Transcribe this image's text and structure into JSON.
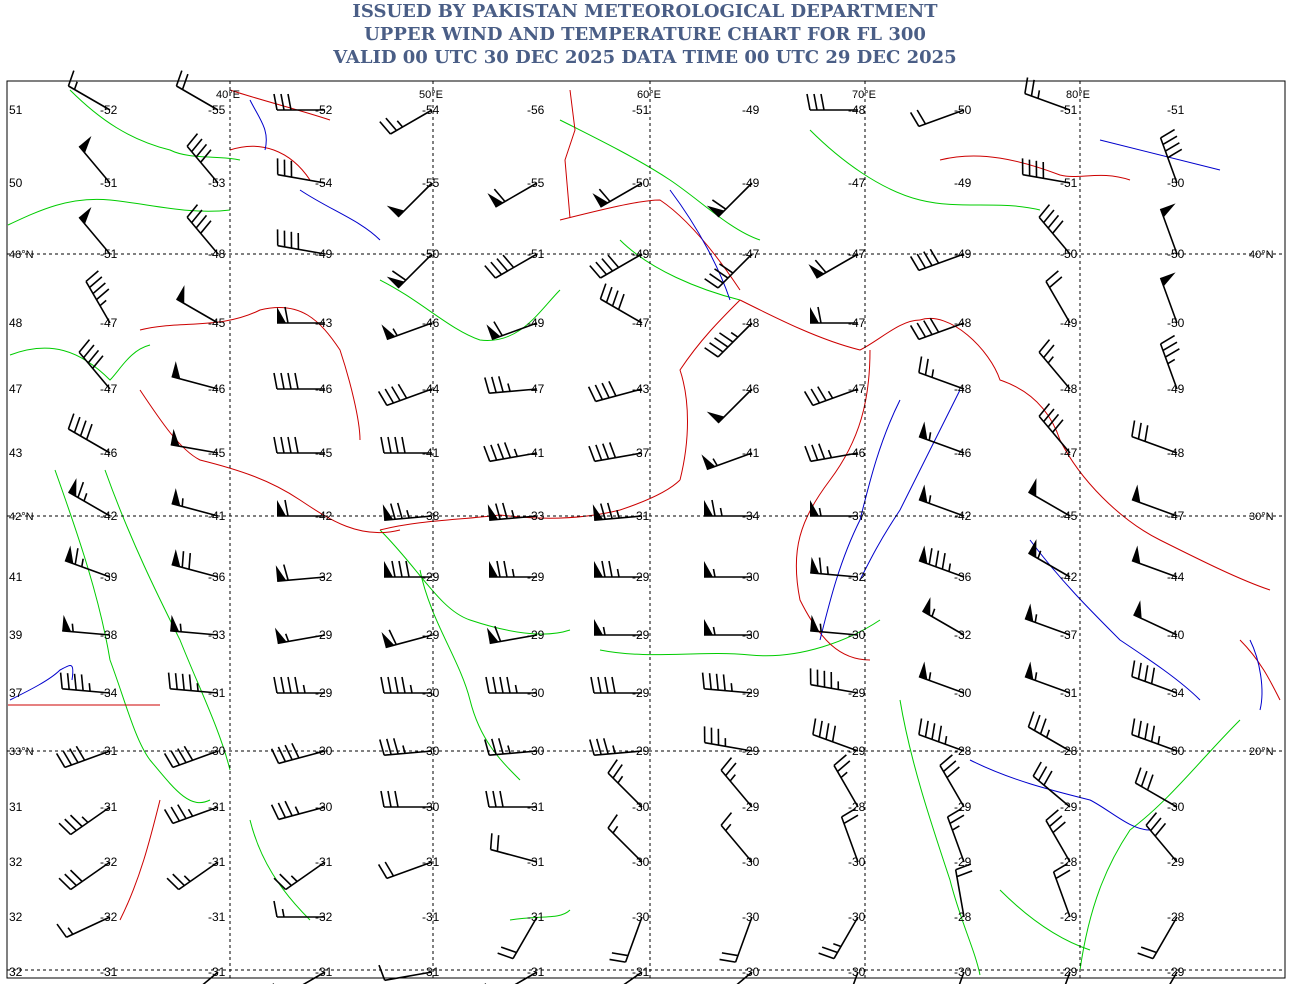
{
  "header": {
    "line1": "ISSUED BY PAKISTAN METEOROLOGICAL DEPARTMENT",
    "line2": "UPPER WIND AND TEMPERATURE CHART FOR FL 300",
    "line3": "VALID 00 UTC 30 DEC 2025 DATA TIME 00 UTC 29 DEC 2025"
  },
  "map": {
    "lon_labels": [
      {
        "lon": 40,
        "label": "40°E"
      },
      {
        "lon": 50,
        "label": "50°E"
      },
      {
        "lon": 60,
        "label": "60°E"
      },
      {
        "lon": 70,
        "label": "70°E"
      },
      {
        "lon": 80,
        "label": "80°E"
      }
    ],
    "lat_labels": [
      {
        "lat": 40,
        "label": "40°N"
      },
      {
        "lat": 30,
        "label": "30°N"
      },
      {
        "lat": 20,
        "label": "20°N"
      }
    ],
    "lat_left_labels": [
      {
        "lat": 40,
        "label": "48°N"
      },
      {
        "lat": 30,
        "label": "42°N"
      },
      {
        "lat": 20,
        "label": "33°N"
      }
    ],
    "left_values": [
      "51",
      "50",
      "",
      "48",
      "47",
      "43",
      "",
      "41",
      "39",
      "37",
      "",
      "31",
      "32",
      "32",
      "32"
    ],
    "colors": {
      "coast": "#00cc00",
      "border": "#cc0000",
      "river": "#0000cc",
      "grid": "#000000"
    },
    "rows": [
      {
        "temps": [
          "-52",
          "-55",
          "-52",
          "-54",
          "-56",
          "-51",
          "-49",
          "-48",
          "-50",
          "-51",
          "-51"
        ],
        "speeds": [
          15,
          20,
          30,
          25,
          0,
          0,
          0,
          30,
          20,
          25,
          0
        ],
        "dirs": [
          300,
          300,
          270,
          240,
          0,
          0,
          0,
          270,
          250,
          290,
          0
        ]
      },
      {
        "temps": [
          "-51",
          "-53",
          "-54",
          "-55",
          "-55",
          "-50",
          "-49",
          "-47",
          "-49",
          "-51",
          "-50"
        ],
        "speeds": [
          50,
          40,
          30,
          50,
          60,
          60,
          60,
          0,
          0,
          40,
          40
        ],
        "dirs": [
          320,
          320,
          280,
          225,
          240,
          240,
          225,
          0,
          0,
          280,
          340
        ]
      },
      {
        "temps": [
          "-51",
          "-48",
          "-49",
          "-50",
          "-51",
          "-49",
          "-47",
          "-47",
          "-49",
          "-50",
          "-50"
        ],
        "speeds": [
          50,
          40,
          40,
          60,
          40,
          40,
          40,
          60,
          40,
          40,
          50
        ],
        "dirs": [
          320,
          320,
          280,
          225,
          240,
          240,
          225,
          240,
          250,
          320,
          340
        ]
      },
      {
        "temps": [
          "-47",
          "-45",
          "-43",
          "-46",
          "-49",
          "-47",
          "-48",
          "-47",
          "-48",
          "-49",
          "-50"
        ],
        "speeds": [
          45,
          50,
          60,
          55,
          60,
          40,
          45,
          60,
          40,
          20,
          50
        ],
        "dirs": [
          330,
          300,
          270,
          250,
          250,
          300,
          225,
          270,
          250,
          330,
          340
        ]
      },
      {
        "temps": [
          "-47",
          "-46",
          "-46",
          "-44",
          "-47",
          "-43",
          "-46",
          "-47",
          "-48",
          "-48",
          "-49"
        ],
        "speeds": [
          40,
          50,
          40,
          40,
          35,
          40,
          50,
          35,
          25,
          25,
          35
        ],
        "dirs": [
          320,
          285,
          270,
          250,
          265,
          255,
          225,
          250,
          290,
          320,
          340
        ]
      },
      {
        "temps": [
          "-46",
          "-45",
          "-45",
          "-41",
          "-41",
          "-37",
          "-41",
          "-46",
          "-46",
          "-47",
          "-48"
        ],
        "speeds": [
          40,
          50,
          40,
          40,
          45,
          40,
          55,
          35,
          55,
          40,
          30
        ],
        "dirs": [
          300,
          280,
          270,
          270,
          260,
          260,
          250,
          260,
          290,
          320,
          290
        ]
      },
      {
        "temps": [
          "-42",
          "-41",
          "-42",
          "-38",
          "-33",
          "-31",
          "-34",
          "-37",
          "-42",
          "-45",
          "-47"
        ],
        "speeds": [
          65,
          55,
          60,
          75,
          75,
          75,
          65,
          55,
          55,
          50,
          50
        ],
        "dirs": [
          300,
          285,
          270,
          265,
          265,
          265,
          270,
          270,
          290,
          300,
          290
        ]
      },
      {
        "temps": [
          "-39",
          "-36",
          "-32",
          "-29",
          "-29",
          "-29",
          "-30",
          "-32",
          "-36",
          "-42",
          "-44"
        ],
        "speeds": [
          65,
          70,
          60,
          80,
          75,
          75,
          55,
          65,
          85,
          55,
          50
        ],
        "dirs": [
          290,
          285,
          265,
          270,
          270,
          270,
          270,
          275,
          290,
          300,
          290
        ]
      },
      {
        "temps": [
          "-38",
          "-33",
          "-29",
          "-29",
          "-29",
          "-29",
          "-30",
          "-30",
          "-32",
          "-37",
          "-40"
        ],
        "speeds": [
          55,
          55,
          55,
          60,
          60,
          55,
          55,
          55,
          55,
          55,
          50
        ],
        "dirs": [
          275,
          275,
          260,
          255,
          260,
          270,
          270,
          275,
          300,
          290,
          295
        ]
      },
      {
        "temps": [
          "-34",
          "-31",
          "-29",
          "-30",
          "-30",
          "-29",
          "-29",
          "-29",
          "-30",
          "-31",
          "-34"
        ],
        "speeds": [
          45,
          45,
          45,
          45,
          45,
          40,
          45,
          45,
          55,
          55,
          40
        ],
        "dirs": [
          275,
          275,
          270,
          270,
          270,
          270,
          275,
          280,
          290,
          290,
          290
        ]
      },
      {
        "temps": [
          "-31",
          "-30",
          "-30",
          "-30",
          "-30",
          "-29",
          "-29",
          "-29",
          "-28",
          "-28",
          "-30"
        ],
        "speeds": [
          40,
          40,
          40,
          35,
          35,
          35,
          35,
          40,
          45,
          35,
          45
        ],
        "dirs": [
          250,
          250,
          255,
          265,
          265,
          265,
          280,
          290,
          290,
          300,
          290
        ]
      },
      {
        "temps": [
          "-31",
          "-31",
          "-30",
          "-30",
          "-31",
          "-30",
          "-29",
          "-28",
          "-29",
          "-29",
          "-30"
        ],
        "speeds": [
          35,
          35,
          35,
          30,
          30,
          25,
          25,
          25,
          30,
          30,
          30
        ],
        "dirs": [
          235,
          250,
          255,
          270,
          270,
          315,
          320,
          330,
          330,
          310,
          300
        ]
      },
      {
        "temps": [
          "-32",
          "-31",
          "-31",
          "-31",
          "-31",
          "-30",
          "-30",
          "-30",
          "-29",
          "-28",
          "-29"
        ],
        "speeds": [
          30,
          25,
          25,
          20,
          20,
          15,
          15,
          20,
          25,
          30,
          30
        ],
        "dirs": [
          235,
          235,
          235,
          250,
          285,
          315,
          320,
          340,
          340,
          330,
          320
        ]
      },
      {
        "temps": [
          "-32",
          "-31",
          "-32",
          "-31",
          "-31",
          "-30",
          "-30",
          "-30",
          "-28",
          "-29",
          "-28"
        ],
        "speeds": [
          15,
          0,
          15,
          0,
          20,
          20,
          20,
          25,
          20,
          20,
          20
        ],
        "dirs": [
          245,
          0,
          270,
          0,
          210,
          200,
          200,
          210,
          350,
          340,
          210
        ]
      },
      {
        "temps": [
          "-31",
          "-31",
          "-31",
          "-31",
          "-31",
          "-31",
          "-30",
          "-30",
          "-30",
          "-29",
          "-29"
        ],
        "speeds": [
          0,
          10,
          10,
          10,
          15,
          15,
          15,
          20,
          25,
          30,
          25
        ],
        "dirs": [
          0,
          230,
          240,
          260,
          240,
          235,
          230,
          200,
          200,
          200,
          210
        ]
      }
    ]
  }
}
